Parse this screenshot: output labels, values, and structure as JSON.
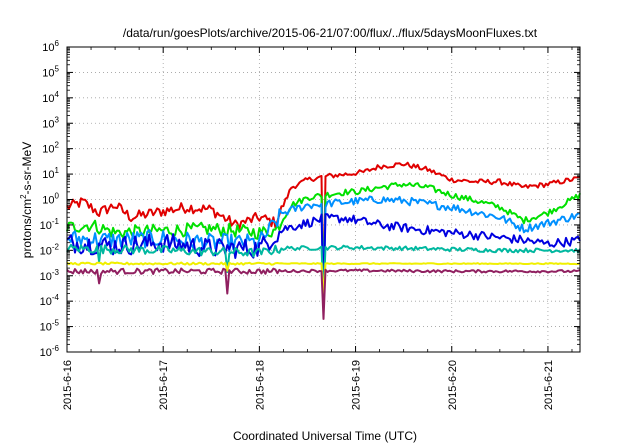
{
  "chart_data": {
    "type": "line",
    "title": "/data/run/goesPlots/archive/2015-06-21/07:00/flux/../flux/5daysMoonFluxes.txt",
    "xlabel": "Coordinated Universal Time (UTC)",
    "ylabel_parts": [
      "protons/cm",
      "2",
      "-s-sr-MeV"
    ],
    "y_scale": "log",
    "ylim_exp": [
      -6,
      6
    ],
    "y_tick_labels": [
      {
        "base": "10",
        "exp": "6"
      },
      {
        "base": "10",
        "exp": "5"
      },
      {
        "base": "10",
        "exp": "4"
      },
      {
        "base": "10",
        "exp": "3"
      },
      {
        "base": "10",
        "exp": "2"
      },
      {
        "base": "10",
        "exp": "1"
      },
      {
        "base": "10",
        "exp": "0"
      },
      {
        "base": "10",
        "exp": "-1"
      },
      {
        "base": "10",
        "exp": "-2"
      },
      {
        "base": "10",
        "exp": "-3"
      },
      {
        "base": "10",
        "exp": "-4"
      },
      {
        "base": "10",
        "exp": "-5"
      },
      {
        "base": "10",
        "exp": "-6"
      }
    ],
    "x_tick_labels": [
      "2015-6-16",
      "2015-6-17",
      "2015-6-18",
      "2015-6-19",
      "2015-6-20",
      "2015-6-21"
    ],
    "xlim_days": [
      "2015-06-16",
      "2015-06-21 08:00"
    ],
    "grid": true,
    "grid_style": "dotted",
    "series": [
      {
        "color": "#e00000",
        "points": [
          [
            "2015-06-16 00:00",
            0.5
          ],
          [
            "2015-06-16 04:00",
            0.8
          ],
          [
            "2015-06-16 08:00",
            0.3
          ],
          [
            "2015-06-16 12:00",
            0.6
          ],
          [
            "2015-06-16 16:00",
            0.2
          ],
          [
            "2015-06-17 00:00",
            0.35
          ],
          [
            "2015-06-17 06:00",
            0.5
          ],
          [
            "2015-06-17 12:00",
            0.4
          ],
          [
            "2015-06-17 18:00",
            0.1
          ],
          [
            "2015-06-18 00:00",
            0.2
          ],
          [
            "2015-06-18 04:00",
            0.12
          ],
          [
            "2015-06-18 08:00",
            3
          ],
          [
            "2015-06-18 12:00",
            6
          ],
          [
            "2015-06-18 16:00",
            8
          ],
          [
            "2015-06-18 22:00",
            10
          ],
          [
            "2015-06-19 02:00",
            12
          ],
          [
            "2015-06-19 06:00",
            20
          ],
          [
            "2015-06-19 12:00",
            25
          ],
          [
            "2015-06-19 18:00",
            15
          ],
          [
            "2015-06-20 00:00",
            6
          ],
          [
            "2015-06-20 06:00",
            5
          ],
          [
            "2015-06-20 12:00",
            5
          ],
          [
            "2015-06-20 18:00",
            3
          ],
          [
            "2015-06-21 00:00",
            4
          ],
          [
            "2015-06-21 08:00",
            7
          ]
        ]
      },
      {
        "color": "#00e000",
        "points": [
          [
            "2015-06-16 00:00",
            0.08
          ],
          [
            "2015-06-16 06:00",
            0.1
          ],
          [
            "2015-06-16 12:00",
            0.05
          ],
          [
            "2015-06-17 00:00",
            0.06
          ],
          [
            "2015-06-17 12:00",
            0.07
          ],
          [
            "2015-06-18 00:00",
            0.05
          ],
          [
            "2015-06-18 04:00",
            0.06
          ],
          [
            "2015-06-18 08:00",
            0.6
          ],
          [
            "2015-06-18 12:00",
            1.2
          ],
          [
            "2015-06-18 16:00",
            1.5
          ],
          [
            "2015-06-18 22:00",
            2
          ],
          [
            "2015-06-19 00:00",
            2
          ],
          [
            "2015-06-19 06:00",
            3
          ],
          [
            "2015-06-19 12:00",
            4
          ],
          [
            "2015-06-19 18:00",
            3
          ],
          [
            "2015-06-20 00:00",
            1.5
          ],
          [
            "2015-06-20 06:00",
            0.9
          ],
          [
            "2015-06-20 12:00",
            0.5
          ],
          [
            "2015-06-20 18:00",
            0.15
          ],
          [
            "2015-06-21 00:00",
            0.3
          ],
          [
            "2015-06-21 08:00",
            1.5
          ]
        ]
      },
      {
        "color": "#0090ff",
        "points": [
          [
            "2015-06-16 00:00",
            0.03
          ],
          [
            "2015-06-16 12:00",
            0.025
          ],
          [
            "2015-06-17 00:00",
            0.03
          ],
          [
            "2015-06-17 12:00",
            0.02
          ],
          [
            "2015-06-18 00:00",
            0.02
          ],
          [
            "2015-06-18 06:00",
            0.3
          ],
          [
            "2015-06-18 12:00",
            0.6
          ],
          [
            "2015-06-18 22:00",
            0.8
          ],
          [
            "2015-06-19 06:00",
            1
          ],
          [
            "2015-06-19 12:00",
            0.9
          ],
          [
            "2015-06-20 00:00",
            0.5
          ],
          [
            "2015-06-20 12:00",
            0.2
          ],
          [
            "2015-06-20 18:00",
            0.07
          ],
          [
            "2015-06-21 00:00",
            0.12
          ],
          [
            "2015-06-21 08:00",
            0.25
          ]
        ]
      },
      {
        "color": "#0000e0",
        "points": [
          [
            "2015-06-16 00:00",
            0.02
          ],
          [
            "2015-06-16 12:00",
            0.015
          ],
          [
            "2015-06-17 00:00",
            0.02
          ],
          [
            "2015-06-17 12:00",
            0.012
          ],
          [
            "2015-06-18 00:00",
            0.012
          ],
          [
            "2015-06-18 06:00",
            0.07
          ],
          [
            "2015-06-18 12:00",
            0.12
          ],
          [
            "2015-06-18 16:00",
            0.18
          ],
          [
            "2015-06-18 22:00",
            0.18
          ],
          [
            "2015-06-19 06:00",
            0.1
          ],
          [
            "2015-06-19 18:00",
            0.06
          ],
          [
            "2015-06-20 06:00",
            0.04
          ],
          [
            "2015-06-20 18:00",
            0.025
          ],
          [
            "2015-06-21 00:00",
            0.018
          ],
          [
            "2015-06-21 08:00",
            0.025
          ]
        ]
      },
      {
        "color": "#00b8a0",
        "points": [
          [
            "2015-06-16 00:00",
            0.012
          ],
          [
            "2015-06-17 00:00",
            0.01
          ],
          [
            "2015-06-18 00:00",
            0.008
          ],
          [
            "2015-06-18 06:00",
            0.012
          ],
          [
            "2015-06-18 22:00",
            0.013
          ],
          [
            "2015-06-19 12:00",
            0.012
          ],
          [
            "2015-06-20 12:00",
            0.01
          ],
          [
            "2015-06-21 08:00",
            0.01
          ]
        ]
      },
      {
        "color": "#f0f000",
        "points": [
          [
            "2015-06-16 00:00",
            0.003
          ],
          [
            "2015-06-17 00:00",
            0.003
          ],
          [
            "2015-06-18 00:00",
            0.003
          ],
          [
            "2015-06-19 00:00",
            0.003
          ],
          [
            "2015-06-20 00:00",
            0.003
          ],
          [
            "2015-06-21 08:00",
            0.003
          ]
        ]
      },
      {
        "color": "#902060",
        "points": [
          [
            "2015-06-16 00:00",
            0.0015
          ],
          [
            "2015-06-17 00:00",
            0.0015
          ],
          [
            "2015-06-18 00:00",
            0.0015
          ],
          [
            "2015-06-19 00:00",
            0.0016
          ],
          [
            "2015-06-20 00:00",
            0.0015
          ],
          [
            "2015-06-21 08:00",
            0.0015
          ]
        ]
      }
    ],
    "dips": [
      {
        "time": "2015-06-16 08:00",
        "series_min": 0.0005
      },
      {
        "time": "2015-06-17 16:00",
        "series_min": 0.0002
      },
      {
        "time": "2015-06-18 16:00",
        "series_min": 2e-05
      }
    ]
  }
}
